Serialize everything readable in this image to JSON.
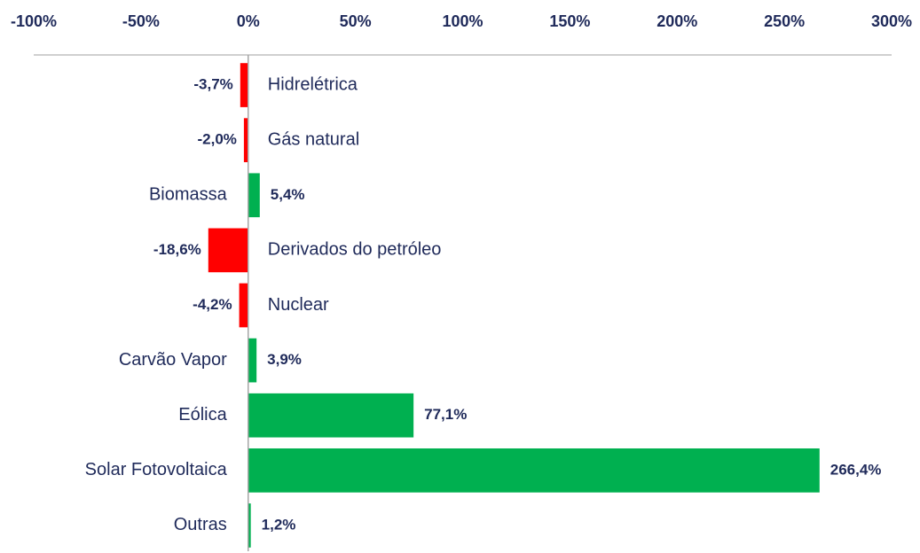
{
  "chart_data": {
    "type": "bar",
    "orientation": "horizontal",
    "categories": [
      "Hidrelétrica",
      "Gás natural",
      "Biomassa",
      "Derivados do petróleo",
      "Nuclear",
      "Carvão Vapor",
      "Eólica",
      "Solar Fotovoltaica",
      "Outras"
    ],
    "values": [
      -3.7,
      -2.0,
      5.4,
      -18.6,
      -4.2,
      3.9,
      77.1,
      266.4,
      1.2
    ],
    "value_labels": [
      "-3,7%",
      "-2,0%",
      "5,4%",
      "-18,6%",
      "-4,2%",
      "3,9%",
      "77,1%",
      "266,4%",
      "1,2%"
    ],
    "colors": [
      "#ff0000",
      "#ff0000",
      "#00b050",
      "#ff0000",
      "#ff0000",
      "#00b050",
      "#00b050",
      "#00b050",
      "#00b050"
    ],
    "xlim": [
      -100,
      300
    ],
    "xticks": [
      {
        "value": -100,
        "label": "-100%"
      },
      {
        "value": -50,
        "label": "-50%"
      },
      {
        "value": 0,
        "label": "0%"
      },
      {
        "value": 50,
        "label": "50%"
      },
      {
        "value": 100,
        "label": "100%"
      },
      {
        "value": 150,
        "label": "150%"
      },
      {
        "value": 200,
        "label": "200%"
      },
      {
        "value": 250,
        "label": "250%"
      },
      {
        "value": 300,
        "label": "300%"
      }
    ],
    "grid": false
  }
}
